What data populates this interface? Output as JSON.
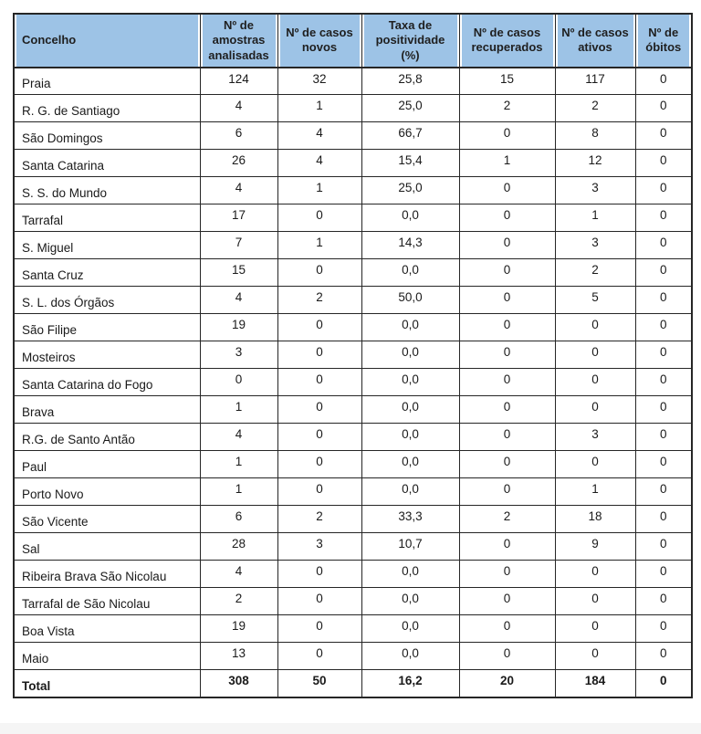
{
  "table": {
    "colors": {
      "header_bg": "#9DC3E6",
      "border": "#262626",
      "text": "#1a1a1a"
    },
    "header": {
      "concelho": "Concelho",
      "columns": [
        "Nº de amostras analisadas",
        "Nº de casos novos",
        "Taxa de positividade (%)",
        "Nº de casos recuperados",
        "Nº de casos ativos",
        "Nº de óbitos"
      ]
    },
    "rows": [
      {
        "concelho": "Praia",
        "amostras": "124",
        "novos": "32",
        "taxa": "25,8",
        "recuperados": "15",
        "ativos": "117",
        "obitos": "0"
      },
      {
        "concelho": "R. G. de Santiago",
        "amostras": "4",
        "novos": "1",
        "taxa": "25,0",
        "recuperados": "2",
        "ativos": "2",
        "obitos": "0"
      },
      {
        "concelho": "São Domingos",
        "amostras": "6",
        "novos": "4",
        "taxa": "66,7",
        "recuperados": "0",
        "ativos": "8",
        "obitos": "0"
      },
      {
        "concelho": "Santa Catarina",
        "amostras": "26",
        "novos": "4",
        "taxa": "15,4",
        "recuperados": "1",
        "ativos": "12",
        "obitos": "0"
      },
      {
        "concelho": "S. S. do Mundo",
        "amostras": "4",
        "novos": "1",
        "taxa": "25,0",
        "recuperados": "0",
        "ativos": "3",
        "obitos": "0"
      },
      {
        "concelho": "Tarrafal",
        "amostras": "17",
        "novos": "0",
        "taxa": "0,0",
        "recuperados": "0",
        "ativos": "1",
        "obitos": "0"
      },
      {
        "concelho": "S. Miguel",
        "amostras": "7",
        "novos": "1",
        "taxa": "14,3",
        "recuperados": "0",
        "ativos": "3",
        "obitos": "0"
      },
      {
        "concelho": "Santa Cruz",
        "amostras": "15",
        "novos": "0",
        "taxa": "0,0",
        "recuperados": "0",
        "ativos": "2",
        "obitos": "0"
      },
      {
        "concelho": "S. L. dos Órgãos",
        "amostras": "4",
        "novos": "2",
        "taxa": "50,0",
        "recuperados": "0",
        "ativos": "5",
        "obitos": "0"
      },
      {
        "concelho": "São Filipe",
        "amostras": "19",
        "novos": "0",
        "taxa": "0,0",
        "recuperados": "0",
        "ativos": "0",
        "obitos": "0"
      },
      {
        "concelho": "Mosteiros",
        "amostras": "3",
        "novos": "0",
        "taxa": "0,0",
        "recuperados": "0",
        "ativos": "0",
        "obitos": "0"
      },
      {
        "concelho": "Santa Catarina do Fogo",
        "amostras": "0",
        "novos": "0",
        "taxa": "0,0",
        "recuperados": "0",
        "ativos": "0",
        "obitos": "0"
      },
      {
        "concelho": "Brava",
        "amostras": "1",
        "novos": "0",
        "taxa": "0,0",
        "recuperados": "0",
        "ativos": "0",
        "obitos": "0"
      },
      {
        "concelho": "R.G. de Santo Antão",
        "amostras": "4",
        "novos": "0",
        "taxa": "0,0",
        "recuperados": "0",
        "ativos": "3",
        "obitos": "0"
      },
      {
        "concelho": "Paul",
        "amostras": "1",
        "novos": "0",
        "taxa": "0,0",
        "recuperados": "0",
        "ativos": "0",
        "obitos": "0"
      },
      {
        "concelho": "Porto Novo",
        "amostras": "1",
        "novos": "0",
        "taxa": "0,0",
        "recuperados": "0",
        "ativos": "1",
        "obitos": "0"
      },
      {
        "concelho": "São Vicente",
        "amostras": "6",
        "novos": "2",
        "taxa": "33,3",
        "recuperados": "2",
        "ativos": "18",
        "obitos": "0"
      },
      {
        "concelho": "Sal",
        "amostras": "28",
        "novos": "3",
        "taxa": "10,7",
        "recuperados": "0",
        "ativos": "9",
        "obitos": "0"
      },
      {
        "concelho": "Ribeira Brava São Nicolau",
        "amostras": "4",
        "novos": "0",
        "taxa": "0,0",
        "recuperados": "0",
        "ativos": "0",
        "obitos": "0"
      },
      {
        "concelho": "Tarrafal de São Nicolau",
        "amostras": "2",
        "novos": "0",
        "taxa": "0,0",
        "recuperados": "0",
        "ativos": "0",
        "obitos": "0"
      },
      {
        "concelho": "Boa Vista",
        "amostras": "19",
        "novos": "0",
        "taxa": "0,0",
        "recuperados": "0",
        "ativos": "0",
        "obitos": "0"
      },
      {
        "concelho": "Maio",
        "amostras": "13",
        "novos": "0",
        "taxa": "0,0",
        "recuperados": "0",
        "ativos": "0",
        "obitos": "0"
      }
    ],
    "total": {
      "concelho": "Total",
      "amostras": "308",
      "novos": "50",
      "taxa": "16,2",
      "recuperados": "20",
      "ativos": "184",
      "obitos": "0"
    }
  }
}
